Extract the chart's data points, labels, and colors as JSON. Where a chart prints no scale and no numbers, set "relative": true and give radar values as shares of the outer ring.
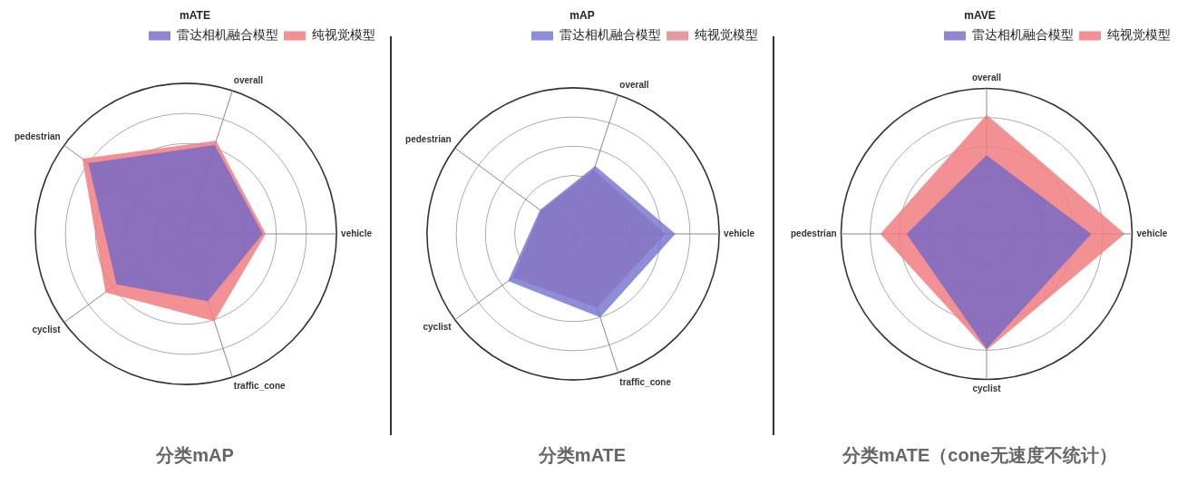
{
  "chart_data": [
    {
      "type": "radar",
      "title": "分类mAP",
      "subtitle": "mATE",
      "relative": true,
      "legend": "top right",
      "grid": true,
      "categories": [
        "overall",
        "vehicle",
        "traffic_cone",
        "cyclist",
        "pedestrian"
      ],
      "series": [
        {
          "name": "纯视觉模型",
          "color": "#f07c80",
          "values": [
            0.65,
            0.53,
            0.61,
            0.66,
            0.85
          ]
        },
        {
          "name": "雷达相机融合模型",
          "color": "#7068c8",
          "values": [
            0.62,
            0.51,
            0.47,
            0.57,
            0.8
          ]
        }
      ]
    },
    {
      "type": "radar",
      "title": "分类mATE",
      "subtitle": "mAP",
      "relative": true,
      "legend": "top right",
      "grid": true,
      "categories": [
        "overall",
        "vehicle",
        "traffic_cone",
        "cyclist",
        "pedestrian"
      ],
      "series": [
        {
          "name": "纯视觉模型",
          "color": "#e08890",
          "values": [
            0.46,
            0.63,
            0.53,
            0.51,
            0.27
          ]
        },
        {
          "name": "雷达相机融合模型",
          "color": "#7070d0",
          "values": [
            0.49,
            0.7,
            0.6,
            0.55,
            0.28
          ]
        }
      ]
    },
    {
      "type": "radar",
      "title": "分类mATE（cone无速度不统计）",
      "subtitle": "mAVE",
      "relative": true,
      "legend": "top right",
      "grid": true,
      "categories": [
        "overall",
        "vehicle",
        "cyclist",
        "pedestrian"
      ],
      "series": [
        {
          "name": "纯视觉模型",
          "color": "#f07c80",
          "values": [
            0.82,
            0.95,
            0.8,
            0.73
          ]
        },
        {
          "name": "雷达相机融合模型",
          "color": "#7068c8",
          "values": [
            0.54,
            0.72,
            0.79,
            0.55
          ]
        }
      ]
    }
  ]
}
